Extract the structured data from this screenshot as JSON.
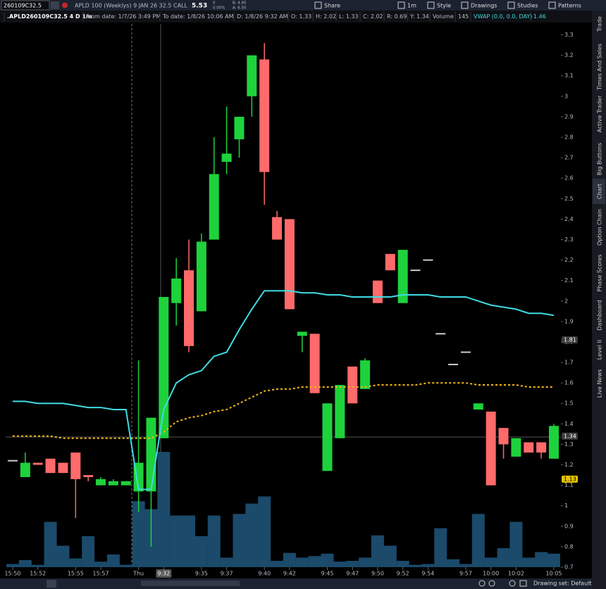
{
  "toolbar": {
    "symbol": "260109C32.5",
    "description": "APLD 100 (Weeklys) 9 JAN 26 32.5 CALL",
    "last": "5.53",
    "change": "0",
    "change_pct": "0.00%",
    "bid": "B: 4.85",
    "ask": "A: 6.50",
    "buttons": [
      "Share",
      "1m",
      "Style",
      "Drawings",
      "Studies",
      "Patterns"
    ]
  },
  "info_bar": [
    ".APLD260109C32.5 4 D 1m",
    "From date: 1/7/26 3:49 PM",
    "To date: 1/8/26 10:06 AM",
    "D: 1/8/26 9:32 AM",
    "O: 1.33",
    "H: 2.02",
    "L: 1.33",
    "C: 2.02",
    "R: 0.69",
    "Y: 1.34",
    "Volume",
    "145",
    "VWAP (0.0, 0.0, DAY)",
    "1.46"
  ],
  "sidebar_tabs": [
    "Trade",
    "Times And Sales",
    "Active Trader",
    "Big Buttons",
    "Chart",
    "Option Chain",
    "Phase Scores",
    "Dashboard",
    "Level II",
    "Live News"
  ],
  "chart_data": {
    "type": "candlestick",
    "categories": [
      "15:50",
      null,
      "15:52",
      null,
      null,
      "15:55",
      null,
      "15:57",
      null,
      null,
      "Thu",
      null,
      "9:32",
      null,
      null,
      "9:35",
      null,
      "9:37",
      null,
      null,
      "9:40",
      null,
      "9:42",
      null,
      null,
      "9:45",
      null,
      "9:47",
      null,
      "9:50",
      null,
      "9:52",
      null,
      "9:54",
      null,
      null,
      "9:57",
      null,
      "10:00",
      null,
      "10:02",
      null,
      null,
      "10:05"
    ],
    "open": [
      1.22,
      1.14,
      1.21,
      1.23,
      1.21,
      1.26,
      1.15,
      1.1,
      1.1,
      1.1,
      1.07,
      1.07,
      1.33,
      1.99,
      2.15,
      1.95,
      2.3,
      2.68,
      2.79,
      3.0,
      3.18,
      2.41,
      2.4,
      1.83,
      1.84,
      1.17,
      1.33,
      1.68,
      1.57,
      2.1,
      2.23,
      1.99,
      2.15,
      2.2,
      1.84,
      1.69,
      1.75,
      1.47,
      1.46,
      1.38,
      1.24,
      1.31,
      1.31,
      1.23
    ],
    "high": [
      1.22,
      1.26,
      1.21,
      1.23,
      1.21,
      1.26,
      1.15,
      1.14,
      1.13,
      1.12,
      1.71,
      1.43,
      2.02,
      2.21,
      2.3,
      2.33,
      2.8,
      2.95,
      2.9,
      3.2,
      3.26,
      2.44,
      2.4,
      1.85,
      1.84,
      1.5,
      1.59,
      1.68,
      1.72,
      2.1,
      2.23,
      2.25,
      2.15,
      2.2,
      1.84,
      1.69,
      1.75,
      1.5,
      1.46,
      1.38,
      1.33,
      1.31,
      1.31,
      1.4
    ],
    "low": [
      1.22,
      1.14,
      1.2,
      1.16,
      1.16,
      0.94,
      1.12,
      1.1,
      1.1,
      1.1,
      0.97,
      0.8,
      1.33,
      1.88,
      1.75,
      1.95,
      2.3,
      2.62,
      2.7,
      2.9,
      2.47,
      2.3,
      1.96,
      1.75,
      1.55,
      1.17,
      1.33,
      1.5,
      1.57,
      1.99,
      2.15,
      1.99,
      2.15,
      2.2,
      1.84,
      1.69,
      1.75,
      1.47,
      1.1,
      1.23,
      1.24,
      1.26,
      1.23,
      1.23
    ],
    "close": [
      1.22,
      1.21,
      1.2,
      1.16,
      1.16,
      1.13,
      1.14,
      1.13,
      1.12,
      1.12,
      1.21,
      1.43,
      2.02,
      2.11,
      1.78,
      2.29,
      2.62,
      2.72,
      2.9,
      3.2,
      2.63,
      2.3,
      1.96,
      1.85,
      1.55,
      1.5,
      1.59,
      1.5,
      1.71,
      1.99,
      2.15,
      2.25,
      2.15,
      2.2,
      1.84,
      1.69,
      1.75,
      1.5,
      1.1,
      1.3,
      1.33,
      1.26,
      1.26,
      1.39
    ],
    "volume": [
      4,
      9,
      3,
      57,
      27,
      11,
      39,
      7,
      16,
      3,
      83,
      73,
      145,
      65,
      65,
      39,
      65,
      12,
      67,
      80,
      89,
      8,
      18,
      12,
      14,
      17,
      7,
      8,
      12,
      40,
      27,
      8,
      3,
      4,
      49,
      10,
      4,
      67,
      12,
      24,
      57,
      12,
      19,
      17
    ],
    "vwap": [
      1.51,
      1.51,
      1.5,
      1.5,
      1.5,
      1.49,
      1.48,
      1.48,
      1.47,
      1.47,
      1.08,
      1.08,
      1.47,
      1.6,
      1.64,
      1.66,
      1.73,
      1.75,
      1.86,
      1.96,
      2.05,
      2.05,
      2.05,
      2.04,
      2.04,
      2.03,
      2.03,
      2.02,
      2.02,
      2.02,
      2.02,
      2.03,
      2.03,
      2.03,
      2.02,
      2.02,
      2.02,
      2.0,
      1.98,
      1.97,
      1.96,
      1.94,
      1.94,
      1.93
    ],
    "average": [
      1.34,
      1.34,
      1.34,
      1.34,
      1.33,
      1.33,
      1.33,
      1.33,
      1.33,
      1.33,
      1.33,
      1.33,
      1.36,
      1.41,
      1.43,
      1.44,
      1.46,
      1.47,
      1.5,
      1.53,
      1.56,
      1.57,
      1.57,
      1.58,
      1.58,
      1.58,
      1.58,
      1.58,
      1.58,
      1.59,
      1.59,
      1.59,
      1.59,
      1.6,
      1.6,
      1.6,
      1.6,
      1.59,
      1.59,
      1.59,
      1.59,
      1.58,
      1.58,
      1.58
    ],
    "up_color": "#1ed23c",
    "down_color": "#ff6a6a",
    "volume_color": "#1b4a6b",
    "vwap_color": "#3fdbe3",
    "average_color": "#f2b90f",
    "ylim": [
      0.7,
      3.35
    ],
    "yticks": [
      0.7,
      0.8,
      0.9,
      1,
      1.1,
      1.2,
      1.3,
      1.4,
      1.5,
      1.6,
      1.7,
      1.8,
      1.9,
      2,
      2.1,
      2.2,
      2.3,
      2.4,
      2.5,
      2.6,
      2.7,
      2.8,
      2.9,
      3,
      3.1,
      3.2,
      3.3
    ],
    "price_markers": [
      1.81,
      1.34,
      1.13
    ],
    "price_marker_colors": [
      "#3c3c3c",
      "#3c3c3c",
      "#e6c200"
    ]
  },
  "footer": {
    "drawing_set": "Drawing set: Default"
  }
}
